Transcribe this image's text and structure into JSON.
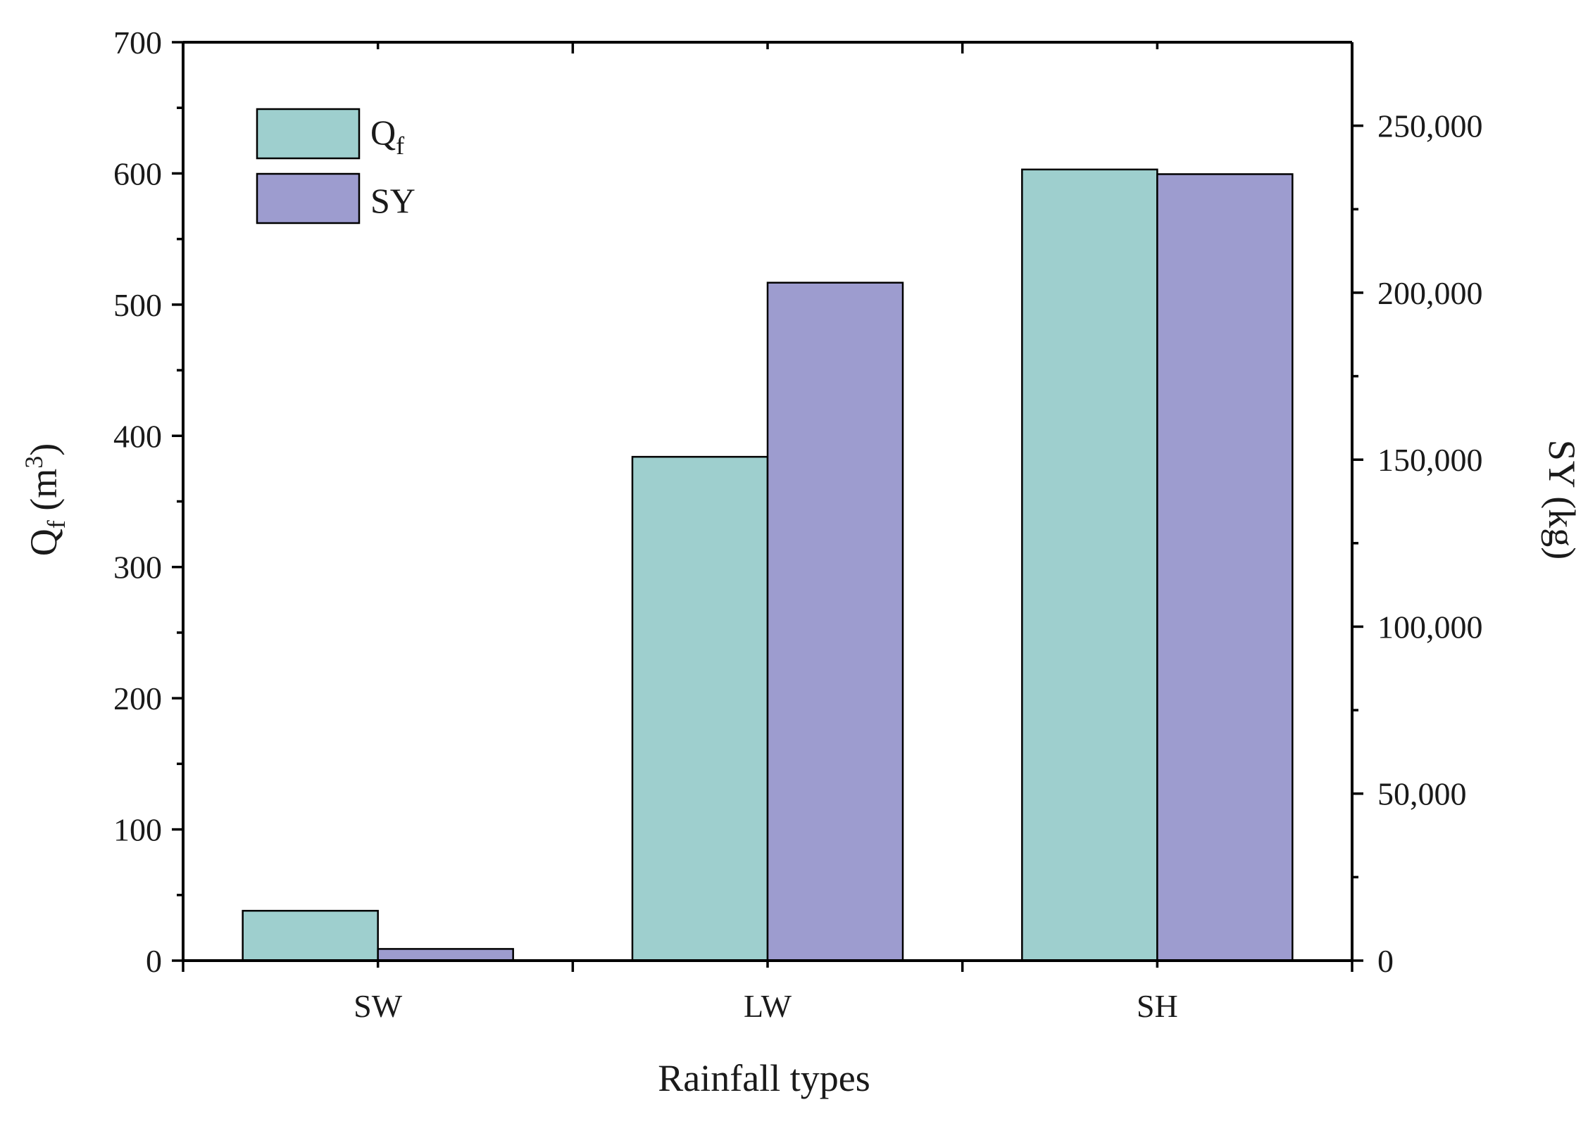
{
  "chart_data": {
    "type": "bar",
    "categories": [
      "SW",
      "LW",
      "SH"
    ],
    "series": [
      {
        "name": "Q",
        "subscript": "f",
        "axis": "left",
        "values": [
          38,
          384,
          603
        ],
        "color": "#9ecfce"
      },
      {
        "name": "SY",
        "axis": "right",
        "values": [
          3500,
          203000,
          235500
        ],
        "color": "#9d9ccf"
      }
    ],
    "xlabel": "Rainfall types",
    "ylabel": {
      "main": "Q",
      "sub": "f",
      "mid": " (m",
      "sup": "3",
      "end": ")"
    },
    "ylabel_right": "SY (kg)",
    "ylim": [
      0,
      700
    ],
    "ylim_right": [
      0,
      275000
    ],
    "yticks": [
      0,
      100,
      200,
      300,
      400,
      500,
      600,
      700
    ],
    "yticks_right": [
      0,
      50000,
      100000,
      150000,
      200000,
      250000
    ],
    "yticks_right_labels": [
      "0",
      "50,000",
      "100,000",
      "150,000",
      "200,000",
      "250,000"
    ],
    "legend_position": "top-left",
    "grid": false
  }
}
